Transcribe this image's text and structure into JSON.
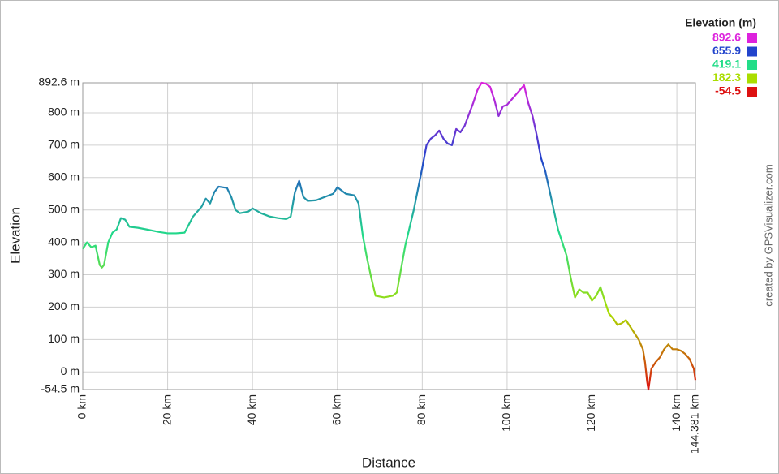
{
  "chart_data": {
    "type": "line",
    "x_label": "Distance",
    "y_label": "Elevation",
    "credit": "created by GPSVisualizer.com",
    "grid": true,
    "legend": {
      "title": "Elevation (m)",
      "stops": [
        {
          "value": 892.6,
          "color": "#dd22dd"
        },
        {
          "value": 655.9,
          "color": "#2244cc"
        },
        {
          "value": 419.1,
          "color": "#22dd88"
        },
        {
          "value": 182.3,
          "color": "#aadd00"
        },
        {
          "value": -54.5,
          "color": "#dd1111"
        }
      ]
    },
    "xlim": [
      0,
      144.381
    ],
    "ylim": [
      -54.5,
      892.6
    ],
    "xticks": [
      {
        "value": 0,
        "label": "0 km"
      },
      {
        "value": 20,
        "label": "20 km"
      },
      {
        "value": 40,
        "label": "40 km"
      },
      {
        "value": 60,
        "label": "60 km"
      },
      {
        "value": 80,
        "label": "80 km"
      },
      {
        "value": 100,
        "label": "100 km"
      },
      {
        "value": 120,
        "label": "120 km"
      },
      {
        "value": 140,
        "label": "140 km"
      },
      {
        "value": 144.381,
        "label": "144.381 km"
      }
    ],
    "yticks": [
      {
        "value": -54.5,
        "label": "-54.5 m"
      },
      {
        "value": 0,
        "label": "0 m"
      },
      {
        "value": 100,
        "label": "100 m"
      },
      {
        "value": 200,
        "label": "200 m"
      },
      {
        "value": 300,
        "label": "300 m"
      },
      {
        "value": 400,
        "label": "400 m"
      },
      {
        "value": 500,
        "label": "500 m"
      },
      {
        "value": 600,
        "label": "600 m"
      },
      {
        "value": 700,
        "label": "700 m"
      },
      {
        "value": 800,
        "label": "800 m"
      },
      {
        "value": 892.6,
        "label": "892.6 m"
      }
    ],
    "x": [
      0,
      1,
      2,
      3,
      4,
      4.5,
      5,
      6,
      7,
      8,
      9,
      10,
      11,
      13,
      15,
      18,
      20,
      22,
      24,
      26,
      28,
      29,
      30,
      31,
      32,
      34,
      35,
      36,
      37,
      39,
      40,
      42,
      44,
      46,
      48,
      49,
      50,
      51,
      52,
      53,
      55,
      57,
      59,
      60,
      61,
      62,
      64,
      65,
      66,
      67,
      68,
      69,
      71,
      73,
      74,
      76,
      78,
      80,
      81,
      82,
      83,
      84,
      85,
      86,
      87,
      88,
      89,
      90,
      92,
      93,
      94,
      95,
      96,
      97,
      98,
      99,
      100,
      101,
      103,
      104,
      105,
      106,
      107,
      108,
      109,
      110,
      111,
      112,
      114,
      115,
      116,
      117,
      118,
      119,
      120,
      121,
      122,
      123,
      124,
      125,
      126,
      127,
      128,
      129,
      130,
      131,
      132,
      132.5,
      133,
      133.3,
      134,
      135,
      136,
      137,
      138,
      139,
      140,
      141,
      142,
      143,
      144,
      144.381
    ],
    "values": [
      380,
      400,
      385,
      390,
      330,
      322,
      330,
      400,
      430,
      440,
      475,
      470,
      448,
      445,
      440,
      432,
      428,
      428,
      430,
      480,
      510,
      535,
      520,
      555,
      572,
      568,
      540,
      500,
      490,
      495,
      505,
      490,
      480,
      475,
      472,
      480,
      555,
      590,
      540,
      528,
      530,
      540,
      550,
      570,
      560,
      550,
      545,
      520,
      420,
      350,
      290,
      235,
      230,
      235,
      245,
      390,
      500,
      630,
      700,
      720,
      730,
      745,
      720,
      705,
      700,
      750,
      740,
      760,
      830,
      870,
      892.6,
      890,
      880,
      840,
      790,
      820,
      825,
      840,
      870,
      885,
      830,
      790,
      730,
      660,
      620,
      560,
      500,
      440,
      360,
      290,
      230,
      255,
      245,
      245,
      220,
      235,
      262,
      220,
      180,
      165,
      145,
      150,
      160,
      140,
      120,
      100,
      70,
      30,
      -30,
      -54.5,
      10,
      30,
      45,
      70,
      85,
      70,
      70,
      65,
      55,
      40,
      10,
      -25
    ]
  }
}
